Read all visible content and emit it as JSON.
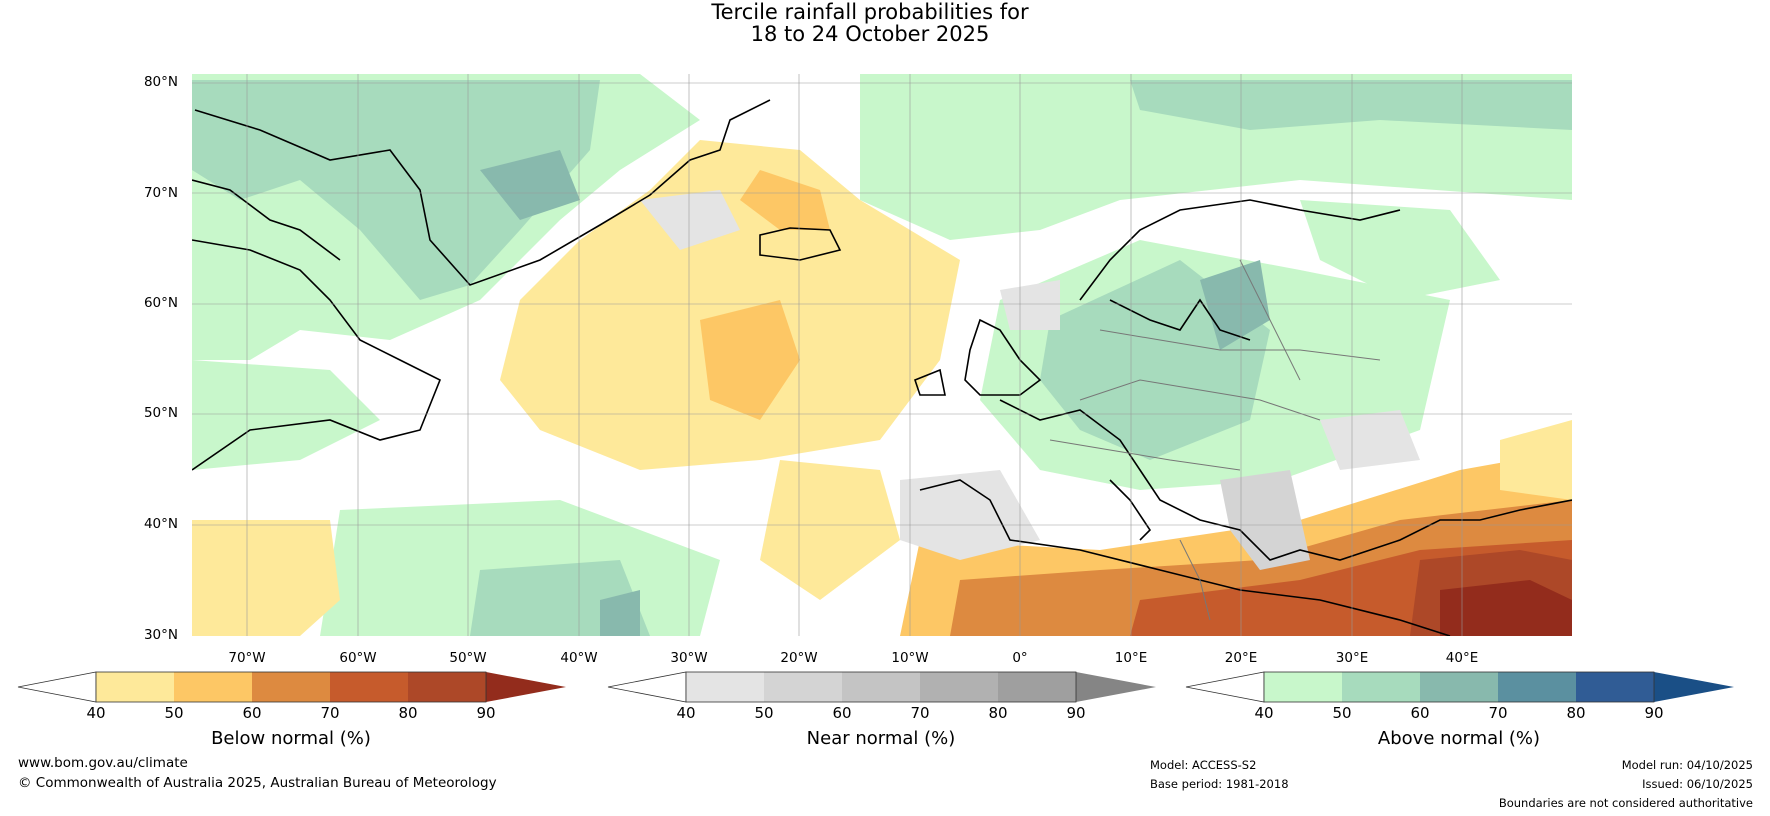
{
  "title": {
    "line1": "Tercile rainfall probabilities for",
    "line2": "18 to 24 October 2025"
  },
  "map": {
    "region": "North Atlantic and Europe",
    "latitudes": [
      "80°N",
      "70°N",
      "60°N",
      "50°N",
      "40°N",
      "30°N"
    ],
    "longitudes": [
      "70°W",
      "60°W",
      "50°W",
      "40°W",
      "30°W",
      "20°W",
      "10°W",
      "0°",
      "10°E",
      "20°E",
      "30°E",
      "40°E"
    ],
    "lat_range": [
      30,
      81
    ],
    "lon_range": [
      -75,
      50
    ]
  },
  "legends": [
    {
      "title": "Below normal (%)",
      "ticks": [
        "40",
        "50",
        "60",
        "70",
        "80",
        "90"
      ],
      "colors": [
        "#ffffff",
        "#fee99a",
        "#fdc765",
        "#dd8a40",
        "#c65b2c",
        "#ad4828",
        "#932c1c"
      ]
    },
    {
      "title": "Near normal (%)",
      "ticks": [
        "40",
        "50",
        "60",
        "70",
        "80",
        "90"
      ],
      "colors": [
        "#ffffff",
        "#e4e4e4",
        "#d4d4d4",
        "#c4c4c4",
        "#b1b1b1",
        "#9f9f9f",
        "#858585"
      ]
    },
    {
      "title": "Above normal (%)",
      "ticks": [
        "40",
        "50",
        "60",
        "70",
        "80",
        "90"
      ],
      "colors": [
        "#ffffff",
        "#c8f7cb",
        "#a7dbbd",
        "#88b9ad",
        "#5b90a0",
        "#305c95",
        "#1a4f86"
      ]
    }
  ],
  "footer": {
    "website": "www.bom.gov.au/climate",
    "copyright": "© Commonwealth of Australia 2025, Australian Bureau of Meteorology",
    "model": "Model: ACCESS-S2",
    "base_period": "Base period: 1981-2018",
    "model_run": "Model run: 04/10/2025",
    "issued": "Issued: 06/10/2025",
    "disclaimer": "Boundaries are not considered authoritative"
  }
}
